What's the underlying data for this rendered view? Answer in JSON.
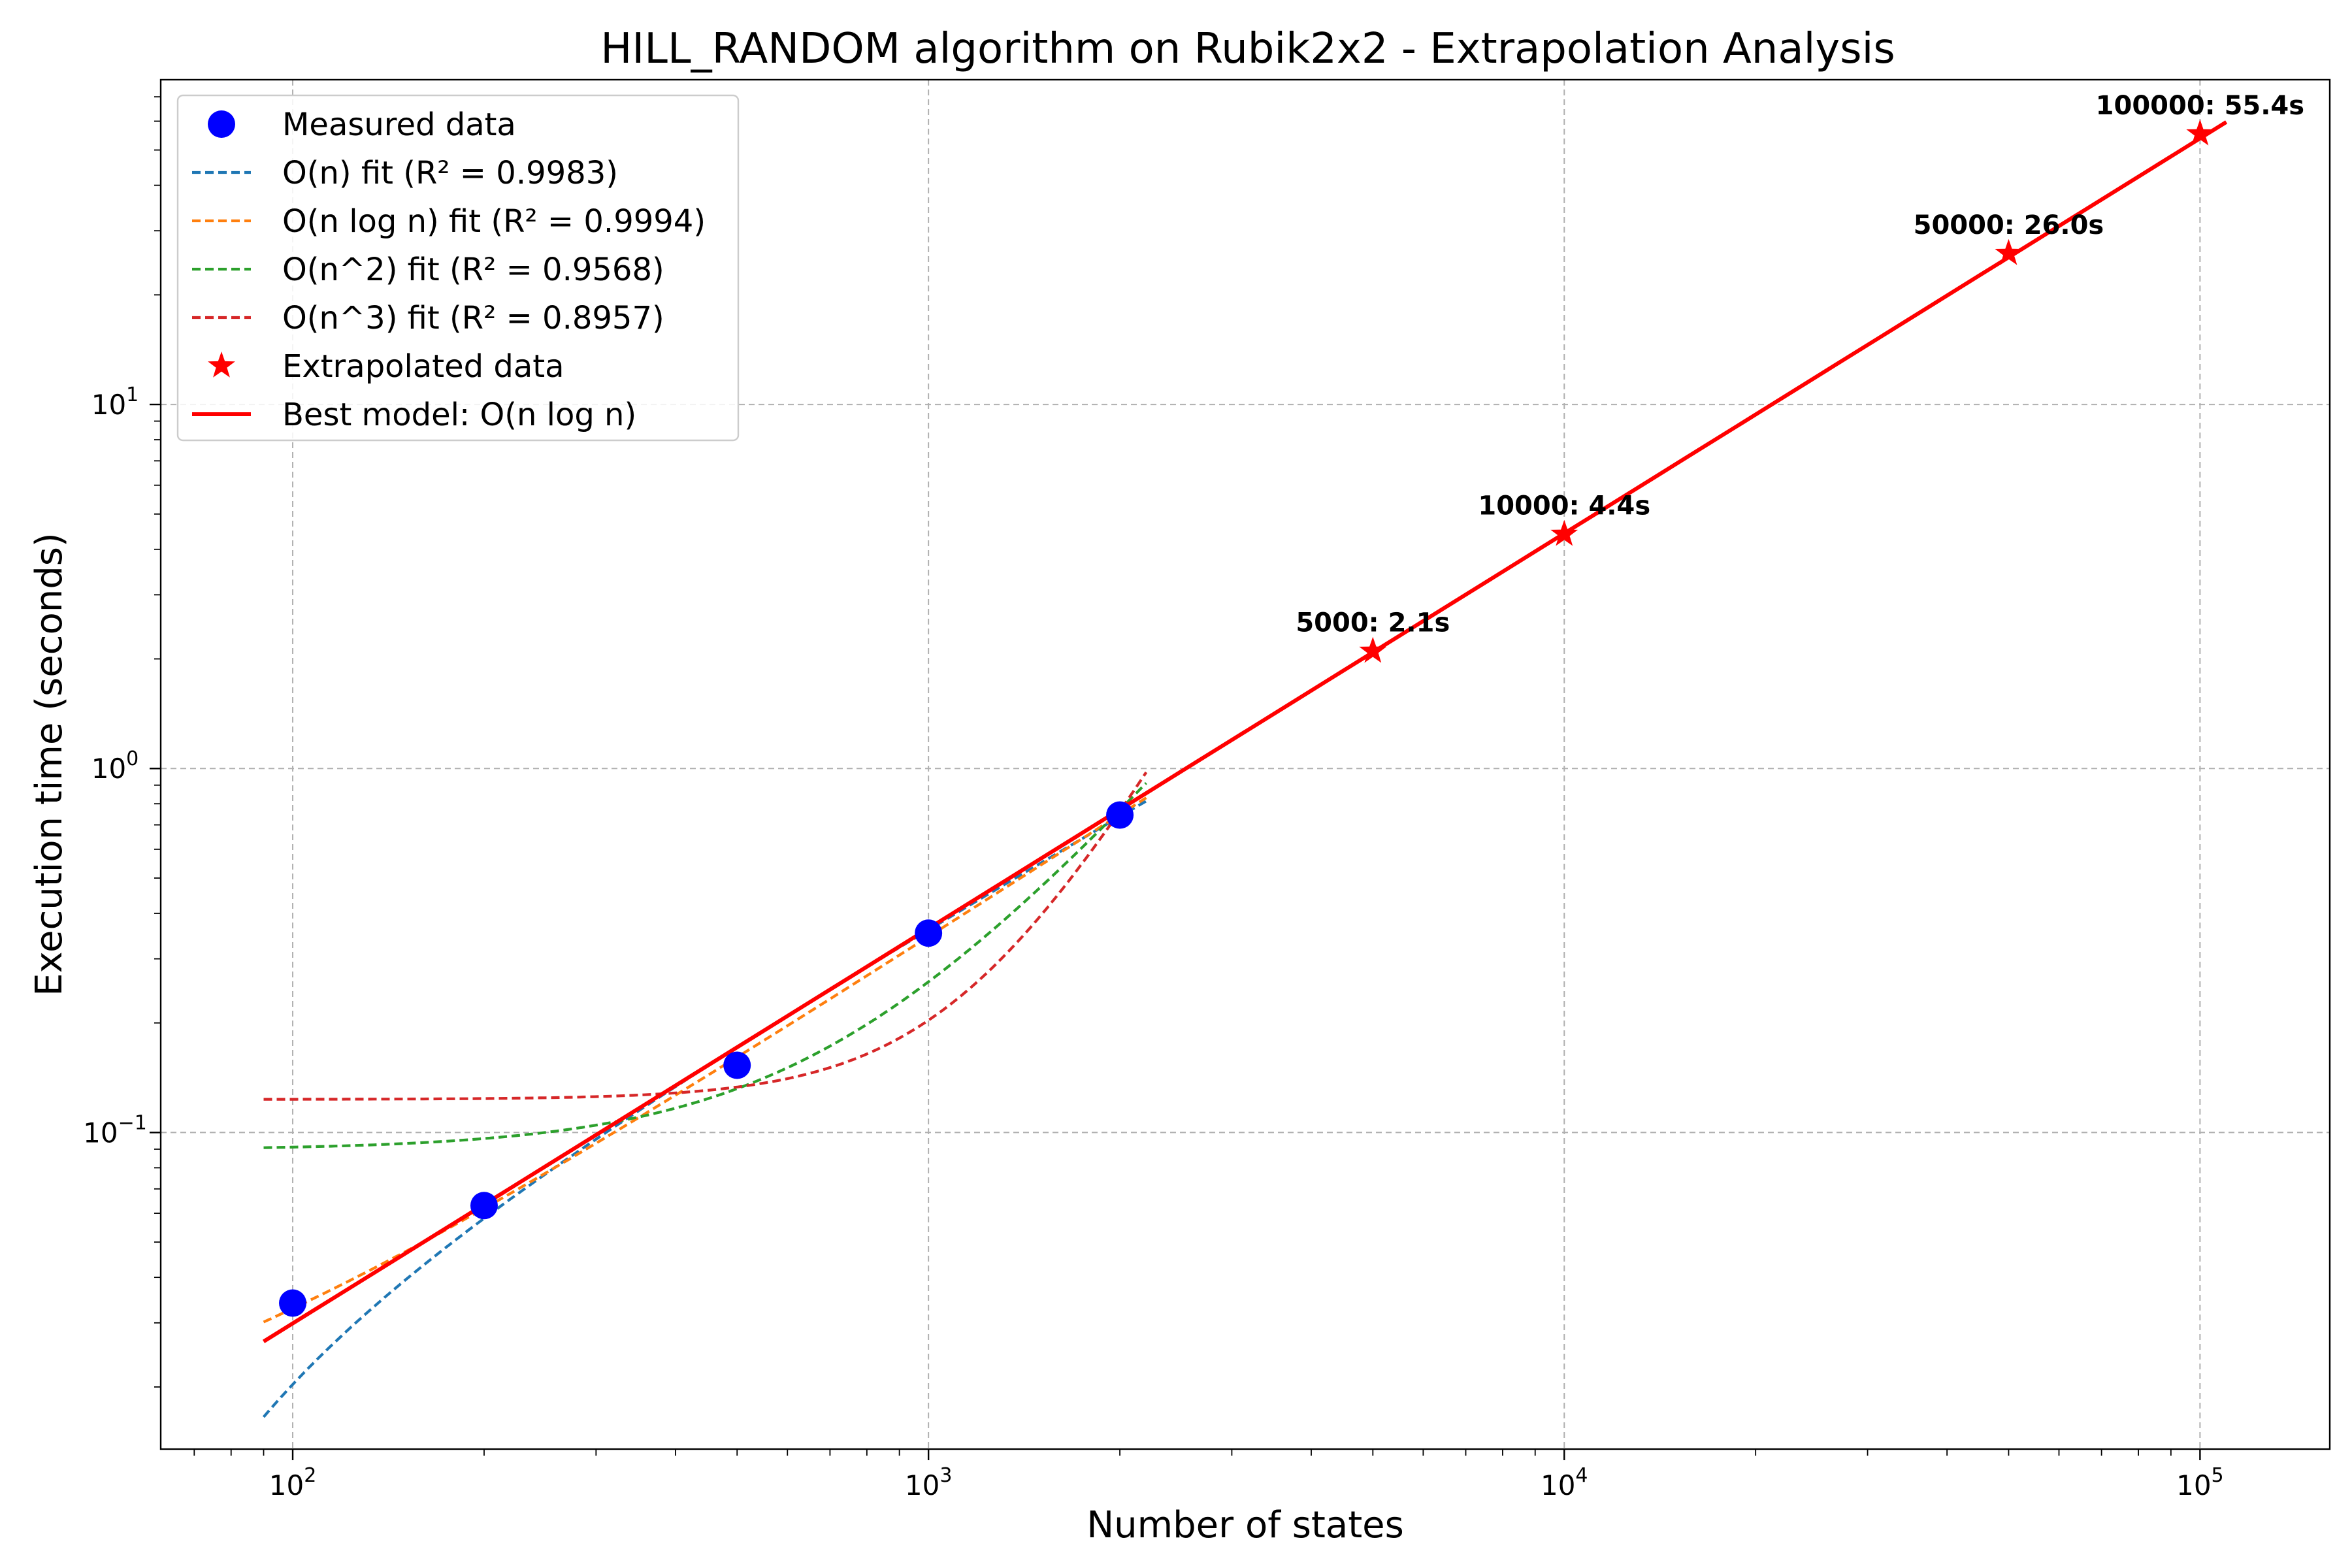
{
  "chart_data": {
    "type": "scatter",
    "title": "HILL_RANDOM algorithm on Rubik2x2 - Extrapolation Analysis",
    "xlabel": "Number of states",
    "ylabel": "Execution time (seconds)",
    "xscale": "log",
    "yscale": "log",
    "xlim": [
      62,
      160000
    ],
    "ylim": [
      0.0135,
      78
    ],
    "grid": true,
    "legend_position": "top-left",
    "x_ticks": [
      {
        "base": "10",
        "exp": "2",
        "value": 100
      },
      {
        "base": "10",
        "exp": "3",
        "value": 1000
      },
      {
        "base": "10",
        "exp": "4",
        "value": 10000
      },
      {
        "base": "10",
        "exp": "5",
        "value": 100000
      }
    ],
    "y_ticks": [
      {
        "base": "10",
        "exp": "−1",
        "value": 0.1
      },
      {
        "base": "10",
        "exp": "0",
        "value": 1
      },
      {
        "base": "10",
        "exp": "1",
        "value": 10
      }
    ],
    "measured": {
      "name": "Measured data",
      "color": "#0000ff",
      "x": [
        100,
        200,
        500,
        1000,
        2000
      ],
      "y": [
        0.034,
        0.063,
        0.153,
        0.353,
        0.745
      ]
    },
    "fits": [
      {
        "name": "O(n) fit (R² = 0.9983)",
        "model": "n",
        "color": "#1f77b4",
        "x_range": [
          90,
          2200
        ]
      },
      {
        "name": "O(n log n) fit (R² = 0.9994)",
        "model": "nlogn",
        "color": "#ff7f0e",
        "x_range": [
          90,
          2200
        ]
      },
      {
        "name": "O(n^2) fit (R² = 0.9568)",
        "model": "n2",
        "color": "#2ca02c",
        "x_range": [
          90,
          2200
        ]
      },
      {
        "name": "O(n^3) fit (R² = 0.8957)",
        "model": "n3",
        "color": "#d62728",
        "x_range": [
          90,
          2200
        ]
      }
    ],
    "extrapolated": {
      "name": "Extrapolated data",
      "color": "#ff0000",
      "x": [
        5000,
        10000,
        50000,
        100000
      ],
      "y": [
        2.1,
        4.4,
        26.0,
        55.4
      ],
      "labels": [
        "5000: 2.1s",
        "10000: 4.4s",
        "50000: 26.0s",
        "100000: 55.4s"
      ]
    },
    "best_model": {
      "name": "Best model: O(n log n)",
      "color": "#ff0000",
      "x_range": [
        90,
        110000
      ]
    }
  }
}
